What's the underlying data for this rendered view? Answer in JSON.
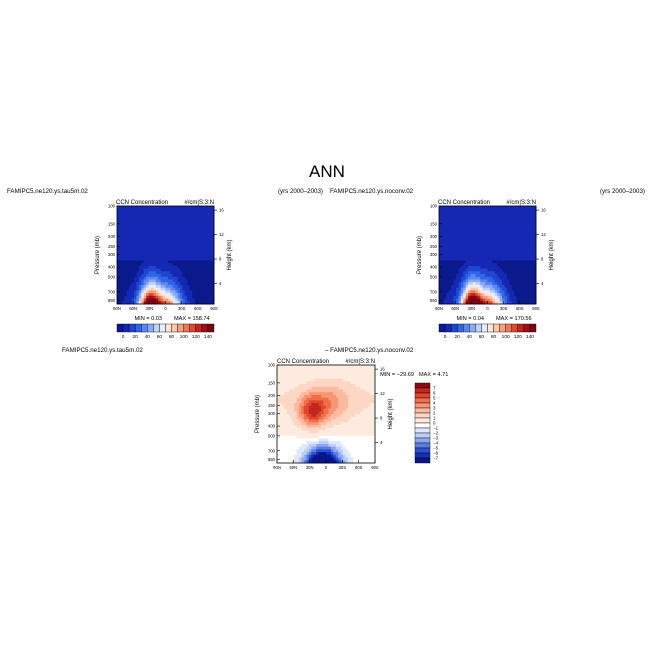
{
  "page": {
    "title": "ANN"
  },
  "panels": {
    "left": {
      "case": "FAMIPC5.ne120.ys.tau5m.02",
      "years": "(yrs 2000–2003)",
      "title": "CCN Concentration",
      "units": "#/cm|S:3:N",
      "min": "MIN =    0.03",
      "max": "MAX = 158.74"
    },
    "right": {
      "case": "FAMIPC5.ne120.ys.noconv.02",
      "years": "(yrs 2000–2003)",
      "title": "CCN Concentration",
      "units": "#/cm|S:3:N",
      "min": "MIN =    0.04",
      "max": "MAX = 170.56"
    },
    "diff": {
      "case": "FAMIPC5.ne120.ys.tau5m.02",
      "subtitle": "– FAMIPC5.ne120.ys.noconv.02",
      "title": "CCN Concentration",
      "units": "#/cm|S:3:N",
      "min": "MIN = −29.69",
      "max": "MAX =   4.71"
    }
  },
  "axes": {
    "ylabel": "Pressure (mb)",
    "y2label": "Height (km)",
    "pressure_ticks": [
      "100",
      "150",
      "200",
      "250",
      "300",
      "400",
      "500",
      "700",
      "850"
    ],
    "height_ticks": [
      "16",
      "12",
      "8",
      "4"
    ],
    "lat_ticks": [
      "90N",
      "60N",
      "30N",
      "0",
      "30S",
      "60S",
      "90S"
    ]
  },
  "colorbars": {
    "abs_labels": [
      "0",
      "20",
      "40",
      "60",
      "80",
      "100",
      "120",
      "140"
    ],
    "abs_colors": [
      "#0a1a8c",
      "#1428b4",
      "#1e46d2",
      "#3264e6",
      "#5a87f0",
      "#8caaf5",
      "#bed2fa",
      "#e6eefd",
      "#fde6d7",
      "#fac8aa",
      "#f5a07d",
      "#eb7855",
      "#dc4b32",
      "#c3261e",
      "#a00f14",
      "#7d050f"
    ],
    "diff_labels": [
      "7",
      "6",
      "5",
      "4",
      "3",
      "2",
      "1",
      "0",
      "−1",
      "−2",
      "−3",
      "−4",
      "−5",
      "−6",
      "−7"
    ],
    "diff_colors": [
      "#8c0a0f",
      "#c3261e",
      "#e0462d",
      "#f06e4b",
      "#f79673",
      "#fbb9a0",
      "#fdd7c3",
      "#fdebe0",
      "#ffffff",
      "#dfe7fb",
      "#bccff7",
      "#8fa8ef",
      "#5a7de4",
      "#2d4fd2",
      "#1430b4",
      "#0a148c"
    ]
  },
  "chart_data": [
    {
      "type": "heatmap",
      "title": "CCN Concentration",
      "case": "FAMIPC5.ne120.ys.tau5m.02",
      "units": "#/cm|S:3:N",
      "x": [
        "90N",
        "60N",
        "30N",
        "0",
        "30S",
        "60S",
        "90S"
      ],
      "y": [
        100,
        150,
        200,
        250,
        300,
        400,
        500,
        700,
        850
      ],
      "ylabel": "Pressure (mb)",
      "y2label": "Height (km)",
      "min": 0.03,
      "max": 158.74,
      "levels": [
        0,
        10,
        20,
        30,
        40,
        50,
        60,
        70,
        80,
        90,
        100,
        110,
        120,
        130,
        140,
        150
      ]
    },
    {
      "type": "heatmap",
      "title": "CCN Concentration",
      "case": "FAMIPC5.ne120.ys.noconv.02",
      "units": "#/cm|S:3:N",
      "x": [
        "90N",
        "60N",
        "30N",
        "0",
        "30S",
        "60S",
        "90S"
      ],
      "y": [
        100,
        150,
        200,
        250,
        300,
        400,
        500,
        700,
        850
      ],
      "ylabel": "Pressure (mb)",
      "y2label": "Height (km)",
      "min": 0.04,
      "max": 170.56,
      "levels": [
        0,
        10,
        20,
        30,
        40,
        50,
        60,
        70,
        80,
        90,
        100,
        110,
        120,
        130,
        140,
        150
      ]
    },
    {
      "type": "heatmap",
      "title": "CCN Concentration",
      "case": "FAMIPC5.ne120.ys.tau5m.02 – FAMIPC5.ne120.ys.noconv.02",
      "units": "#/cm|S:3:N",
      "x": [
        "90N",
        "60N",
        "30N",
        "0",
        "30S",
        "60S",
        "90S"
      ],
      "y": [
        100,
        150,
        200,
        250,
        300,
        400,
        500,
        700,
        850
      ],
      "ylabel": "Pressure (mb)",
      "y2label": "Height (km)",
      "min": -29.69,
      "max": 4.71,
      "levels": [
        -7,
        -6,
        -5,
        -4,
        -3,
        -2,
        -1,
        0,
        1,
        2,
        3,
        4,
        5,
        6,
        7
      ]
    }
  ]
}
